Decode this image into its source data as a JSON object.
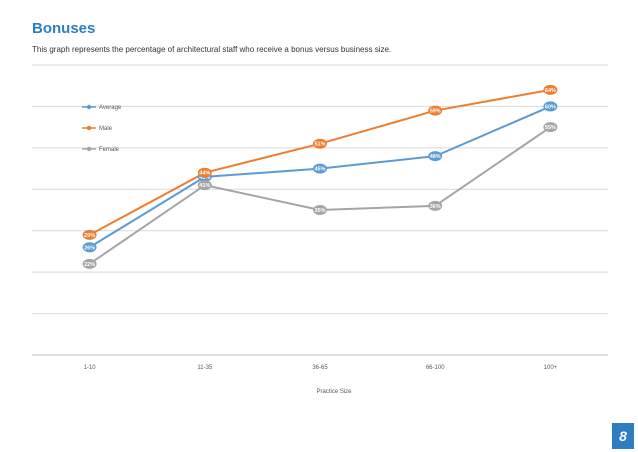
{
  "page": {
    "title": "Bonuses",
    "subtitle": "This graph represents the percentage of architectural staff who receive a bonus versus business size.",
    "page_number": "8"
  },
  "chart_data": {
    "type": "line",
    "categories": [
      "1-10",
      "11-35",
      "36-65",
      "66-100",
      "100+"
    ],
    "series": [
      {
        "name": "Average",
        "color": "#5b9bd5",
        "values": [
          26,
          43,
          45,
          48,
          60
        ],
        "labels": [
          "26%",
          "43%",
          "45%",
          "48%",
          "60%"
        ]
      },
      {
        "name": "Male",
        "color": "#ed7d31",
        "values": [
          29,
          44,
          51,
          59,
          64
        ],
        "labels": [
          "29%",
          "44%",
          "51%",
          "59%",
          "64%"
        ]
      },
      {
        "name": "Female",
        "color": "#a5a5a5",
        "values": [
          22,
          41,
          35,
          36,
          55
        ],
        "labels": [
          "22%",
          "41%",
          "35%",
          "36%",
          "55%"
        ]
      }
    ],
    "xlabel": "Practice Size",
    "ylabel": "",
    "ylim": [
      0,
      70
    ],
    "ytick_step": 10,
    "grid": true,
    "legend_position": "top-left"
  }
}
